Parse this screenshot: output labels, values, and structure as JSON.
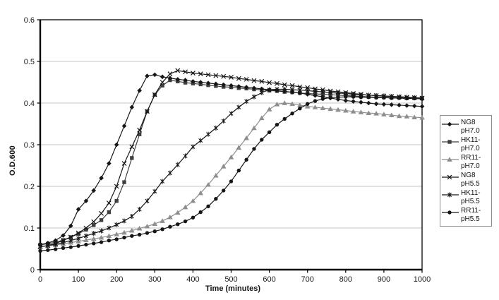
{
  "figure": {
    "background": "#ffffff",
    "plot_border_color": "#000000",
    "gridline_color": "#c4c4c4",
    "tick_label_color": "#1a1a1a"
  },
  "chart_data": {
    "type": "line",
    "title": "",
    "xlabel": "Time (minutes)",
    "ylabel": "O.D.600",
    "xlim": [
      0,
      1000
    ],
    "ylim": [
      0,
      0.6
    ],
    "x_ticks": [
      0,
      100,
      200,
      300,
      400,
      500,
      600,
      700,
      800,
      900,
      1000
    ],
    "y_ticks": [
      0,
      0.1,
      0.2,
      0.3,
      0.4,
      0.5,
      0.6
    ],
    "y_tick_labels": [
      "0",
      "0.1",
      "0.2",
      "0.3",
      "0.4",
      "0.5",
      "0.6"
    ],
    "grid": "horizontal-only",
    "legend_position": "right",
    "x_start": 0,
    "x_step": 20,
    "series": [
      {
        "name": "NG8 pH7.0",
        "legend_lines": [
          "NG8",
          "pH7.0"
        ],
        "marker": "diamond",
        "color": "#161616",
        "values": [
          0.06,
          0.064,
          0.07,
          0.082,
          0.105,
          0.145,
          0.165,
          0.19,
          0.22,
          0.255,
          0.3,
          0.345,
          0.39,
          0.43,
          0.465,
          0.468,
          0.463,
          0.46,
          0.457,
          0.455,
          0.452,
          0.45,
          0.448,
          0.446,
          0.444,
          0.442,
          0.44,
          0.438,
          0.436,
          0.434,
          0.432,
          0.43,
          0.428,
          0.426,
          0.424,
          0.421,
          0.418,
          0.415,
          0.412,
          0.409,
          0.406,
          0.404,
          0.402,
          0.4,
          0.398,
          0.397,
          0.396,
          0.395,
          0.394,
          0.393,
          0.392
        ]
      },
      {
        "name": "HK11- pH7.0",
        "legend_lines": [
          "HK11-",
          "pH7.0"
        ],
        "marker": "square",
        "color": "#3f3f3f",
        "values": [
          0.06,
          0.062,
          0.066,
          0.071,
          0.078,
          0.086,
          0.096,
          0.107,
          0.119,
          0.138,
          0.165,
          0.21,
          0.268,
          0.325,
          0.38,
          0.42,
          0.442,
          0.455,
          0.452,
          0.449,
          0.447,
          0.445,
          0.443,
          0.441,
          0.439,
          0.438,
          0.436,
          0.435,
          0.433,
          0.432,
          0.43,
          0.429,
          0.427,
          0.426,
          0.424,
          0.423,
          0.422,
          0.421,
          0.42,
          0.419,
          0.418,
          0.417,
          0.416,
          0.415,
          0.414,
          0.414,
          0.413,
          0.413,
          0.412,
          0.412,
          0.412
        ]
      },
      {
        "name": "RR11- pH7.0",
        "legend_lines": [
          "RR11-",
          "pH7.0"
        ],
        "marker": "triangle",
        "color": "#8e8e8e",
        "values": [
          0.055,
          0.057,
          0.059,
          0.062,
          0.065,
          0.068,
          0.071,
          0.074,
          0.077,
          0.081,
          0.085,
          0.089,
          0.094,
          0.099,
          0.104,
          0.11,
          0.117,
          0.126,
          0.137,
          0.15,
          0.165,
          0.184,
          0.204,
          0.226,
          0.248,
          0.27,
          0.293,
          0.316,
          0.34,
          0.364,
          0.385,
          0.397,
          0.4,
          0.398,
          0.395,
          0.392,
          0.39,
          0.388,
          0.386,
          0.384,
          0.382,
          0.38,
          0.378,
          0.376,
          0.375,
          0.373,
          0.371,
          0.369,
          0.368,
          0.366,
          0.365
        ]
      },
      {
        "name": "NG8 pH5.5",
        "legend_lines": [
          "NG8",
          "pH5.5"
        ],
        "marker": "x",
        "color": "#161616",
        "values": [
          0.055,
          0.058,
          0.063,
          0.07,
          0.078,
          0.088,
          0.1,
          0.115,
          0.135,
          0.16,
          0.2,
          0.255,
          0.295,
          0.335,
          0.38,
          0.42,
          0.45,
          0.47,
          0.478,
          0.475,
          0.472,
          0.47,
          0.468,
          0.466,
          0.464,
          0.462,
          0.459,
          0.457,
          0.454,
          0.452,
          0.449,
          0.447,
          0.444,
          0.442,
          0.439,
          0.437,
          0.434,
          0.432,
          0.429,
          0.427,
          0.425,
          0.423,
          0.421,
          0.419,
          0.418,
          0.417,
          0.416,
          0.415,
          0.414,
          0.413,
          0.412
        ]
      },
      {
        "name": "HK11- pH5.5",
        "legend_lines": [
          "HK11-",
          "pH5.5"
        ],
        "marker": "asterisk",
        "color": "#161616",
        "values": [
          0.055,
          0.058,
          0.061,
          0.065,
          0.07,
          0.075,
          0.081,
          0.087,
          0.093,
          0.1,
          0.108,
          0.117,
          0.128,
          0.145,
          0.165,
          0.188,
          0.212,
          0.232,
          0.252,
          0.273,
          0.295,
          0.31,
          0.325,
          0.34,
          0.357,
          0.375,
          0.39,
          0.404,
          0.415,
          0.425,
          0.432,
          0.433,
          0.433,
          0.432,
          0.431,
          0.43,
          0.428,
          0.427,
          0.425,
          0.424,
          0.423,
          0.421,
          0.42,
          0.419,
          0.418,
          0.417,
          0.416,
          0.415,
          0.414,
          0.413,
          0.412
        ]
      },
      {
        "name": "RR11- pH5.5",
        "legend_lines": [
          "RR11-",
          "pH5.5"
        ],
        "marker": "circle",
        "color": "#161616",
        "values": [
          0.045,
          0.047,
          0.049,
          0.052,
          0.054,
          0.057,
          0.06,
          0.063,
          0.066,
          0.07,
          0.073,
          0.077,
          0.081,
          0.084,
          0.088,
          0.092,
          0.097,
          0.103,
          0.109,
          0.116,
          0.125,
          0.138,
          0.152,
          0.17,
          0.19,
          0.212,
          0.238,
          0.264,
          0.29,
          0.312,
          0.33,
          0.348,
          0.362,
          0.375,
          0.387,
          0.398,
          0.405,
          0.41,
          0.413,
          0.414,
          0.415,
          0.415,
          0.414,
          0.414,
          0.413,
          0.413,
          0.412,
          0.412,
          0.411,
          0.411,
          0.41
        ]
      }
    ]
  }
}
